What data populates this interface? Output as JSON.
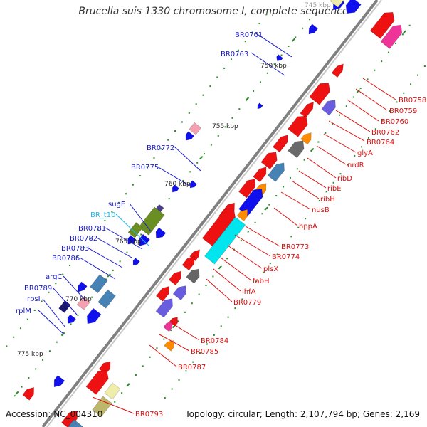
{
  "title": "Brucella suis 1330 chromosome I, complete sequence",
  "footer": {
    "accession": "Accession: NC_004310",
    "topology": "Topology: circular; Length: 2,107,794 bp; Genes: 2,169"
  },
  "colors": {
    "backbone": "#808080",
    "gene_label_forward": "#1a1acc",
    "gene_label_reverse": "#dd1111",
    "rna_label": "#22b6e8",
    "tick": "#2a8a2a",
    "kbp_label": "#222222"
  },
  "kbp_ticks": [
    "745 kbp",
    "750 kbp",
    "755 kbp",
    "760 kbp",
    "765 kbp",
    "770 kbp",
    "775 kbp"
  ],
  "labels_forward": [
    "BR0761",
    "BR0763",
    "BR0772",
    "BR0775",
    "sugE",
    "BR_t10",
    "BR0781",
    "BR0782",
    "BR0783",
    "BR0786",
    "argC",
    "BR0789",
    "rpsI",
    "rplM"
  ],
  "labels_reverse": [
    "BR0758",
    "BR0759",
    "BR0760",
    "BR0762",
    "BR0764",
    "glyA",
    "nrdR",
    "ribD",
    "ribE",
    "ribH",
    "nusB",
    "hppA",
    "BR0773",
    "BR0774",
    "plsX",
    "fabH",
    "ihfA",
    "BR0779",
    "BR0784",
    "BR0785",
    "BR0787",
    "BR0793"
  ]
}
